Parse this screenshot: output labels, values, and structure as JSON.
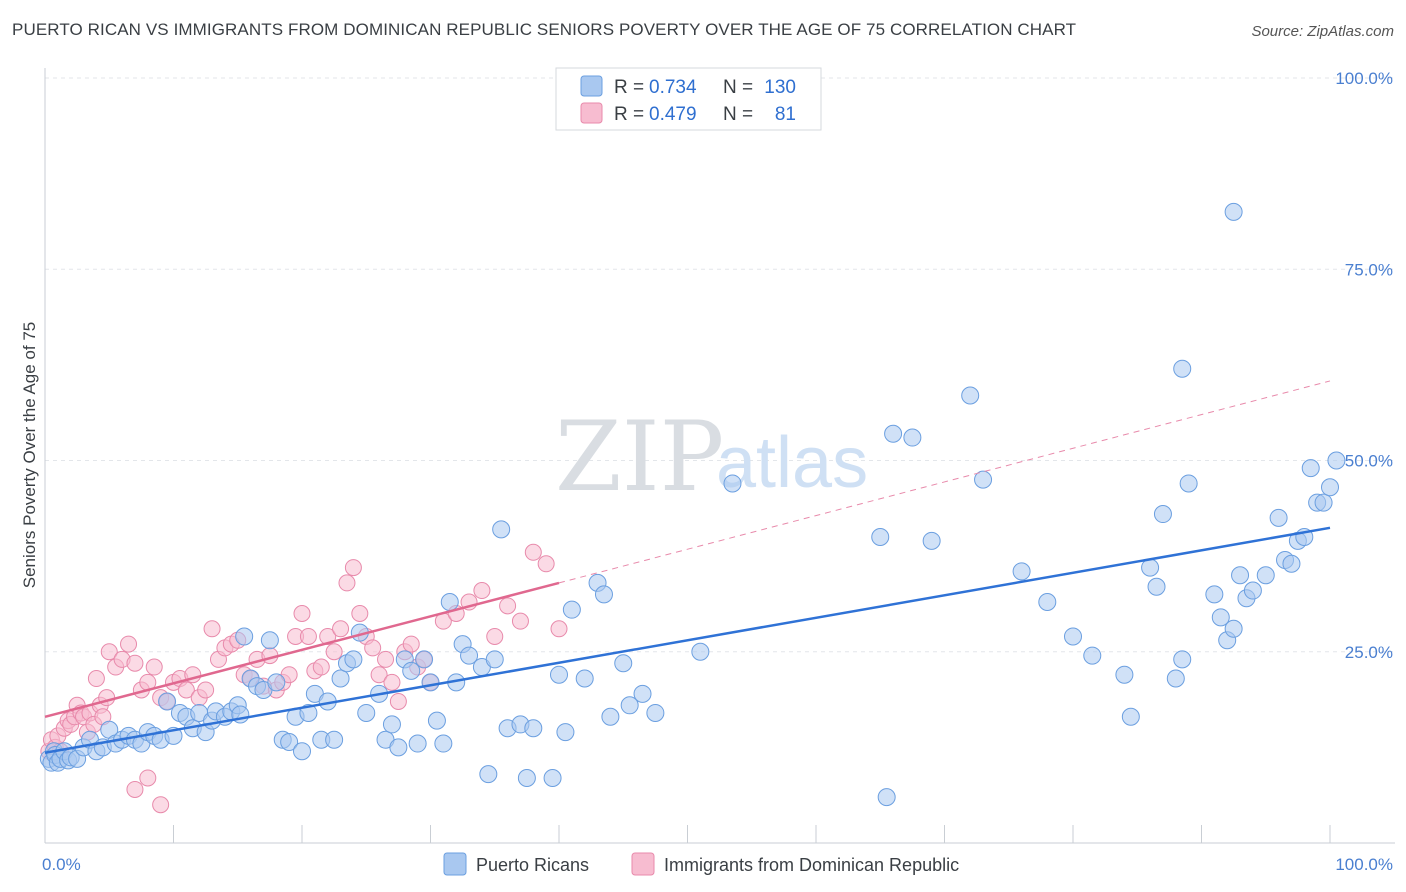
{
  "title": "PUERTO RICAN VS IMMIGRANTS FROM DOMINICAN REPUBLIC SENIORS POVERTY OVER THE AGE OF 75 CORRELATION CHART",
  "source": "Source: ZipAtlas.com",
  "watermark": {
    "zip": "ZIP",
    "atlas": "atlas"
  },
  "legend_top": [
    {
      "r_label": "R =",
      "r_value": "0.734",
      "n_label": "N =",
      "n_value": "130",
      "color": "#a9c8f0",
      "border": "#6b9fe0"
    },
    {
      "r_label": "R =",
      "r_value": "0.479",
      "n_label": "N =",
      "n_value": "81",
      "color": "#f7bcd0",
      "border": "#e88aab"
    }
  ],
  "legend_bottom": [
    {
      "label": "Puerto Ricans",
      "color": "#a9c8f0",
      "border": "#6b9fe0"
    },
    {
      "label": "Immigrants from Dominican Republic",
      "color": "#f7bcd0",
      "border": "#e88aab"
    }
  ],
  "chart_data": {
    "type": "scatter",
    "xlabel": "",
    "ylabel": "Seniors Poverty Over the Age of 75",
    "xlim": [
      0,
      100
    ],
    "ylim": [
      0,
      100
    ],
    "x_tick_labels": [
      "0.0%",
      "100.0%"
    ],
    "y_ticks": [
      {
        "value": 25,
        "label": "25.0%"
      },
      {
        "value": 50,
        "label": "50.0%"
      },
      {
        "value": 75,
        "label": "75.0%"
      },
      {
        "value": 100,
        "label": "100.0%"
      }
    ],
    "grid": true,
    "colors": {
      "blue_fill": "#a9c8f0",
      "blue_edge": "#6b9fe0",
      "blue_line": "#2f72d6",
      "pink_fill": "#f7bcd0",
      "pink_edge": "#e88aab",
      "pink_line": "#e0688f"
    },
    "series": [
      {
        "name": "Puerto Ricans",
        "trend": {
          "x0": 0,
          "y0": 11.8,
          "x1": 100,
          "y1": 41.2
        },
        "points": [
          [
            0.3,
            11
          ],
          [
            0.5,
            10.5
          ],
          [
            0.7,
            12
          ],
          [
            0.8,
            11.5
          ],
          [
            1,
            10.5
          ],
          [
            1.2,
            11
          ],
          [
            1.5,
            12
          ],
          [
            1.8,
            10.8
          ],
          [
            2,
            11.2
          ],
          [
            2.5,
            11
          ],
          [
            3,
            12.5
          ],
          [
            3.5,
            13.5
          ],
          [
            4,
            12
          ],
          [
            4.5,
            12.5
          ],
          [
            5,
            14.8
          ],
          [
            5.5,
            13
          ],
          [
            6,
            13.5
          ],
          [
            6.5,
            14
          ],
          [
            7,
            13.5
          ],
          [
            7.5,
            13
          ],
          [
            8,
            14.5
          ],
          [
            8.5,
            14
          ],
          [
            9,
            13.5
          ],
          [
            9.5,
            18.5
          ],
          [
            10,
            14
          ],
          [
            10.5,
            17
          ],
          [
            11,
            16.5
          ],
          [
            11.5,
            15
          ],
          [
            12,
            17
          ],
          [
            12.5,
            14.5
          ],
          [
            13,
            16
          ],
          [
            13.3,
            17.2
          ],
          [
            14,
            16.5
          ],
          [
            14.5,
            17.2
          ],
          [
            15,
            18
          ],
          [
            15.2,
            16.8
          ],
          [
            15.5,
            27
          ],
          [
            16,
            21.5
          ],
          [
            16.5,
            20.5
          ],
          [
            17,
            20
          ],
          [
            17.5,
            26.5
          ],
          [
            18,
            21
          ],
          [
            18.5,
            13.5
          ],
          [
            19,
            13.2
          ],
          [
            19.5,
            16.5
          ],
          [
            20,
            12
          ],
          [
            20.5,
            17
          ],
          [
            21,
            19.5
          ],
          [
            21.5,
            13.5
          ],
          [
            22,
            18.5
          ],
          [
            22.5,
            13.5
          ],
          [
            23,
            21.5
          ],
          [
            23.5,
            23.5
          ],
          [
            24,
            24
          ],
          [
            24.5,
            27.5
          ],
          [
            25,
            17
          ],
          [
            26,
            19.5
          ],
          [
            26.5,
            13.5
          ],
          [
            27,
            15.5
          ],
          [
            27.5,
            12.5
          ],
          [
            28,
            24
          ],
          [
            28.5,
            22.5
          ],
          [
            29,
            13
          ],
          [
            29.5,
            24
          ],
          [
            30,
            21
          ],
          [
            30.5,
            16
          ],
          [
            31,
            13
          ],
          [
            31.5,
            31.5
          ],
          [
            32,
            21
          ],
          [
            32.5,
            26
          ],
          [
            33,
            24.5
          ],
          [
            34,
            23
          ],
          [
            34.5,
            9
          ],
          [
            35,
            24
          ],
          [
            35.5,
            41
          ],
          [
            36,
            15
          ],
          [
            37,
            15.5
          ],
          [
            37.5,
            8.5
          ],
          [
            38,
            15
          ],
          [
            39.5,
            8.5
          ],
          [
            40,
            22
          ],
          [
            40.5,
            14.5
          ],
          [
            41,
            30.5
          ],
          [
            42,
            21.5
          ],
          [
            43,
            34
          ],
          [
            43.5,
            32.5
          ],
          [
            44,
            16.5
          ],
          [
            45,
            23.5
          ],
          [
            45.5,
            18
          ],
          [
            46.5,
            19.5
          ],
          [
            47.5,
            17
          ],
          [
            51,
            25
          ],
          [
            53.5,
            47
          ],
          [
            65,
            40
          ],
          [
            65.5,
            6
          ],
          [
            66,
            53.5
          ],
          [
            67.5,
            53
          ],
          [
            69,
            39.5
          ],
          [
            72,
            58.5
          ],
          [
            73,
            47.5
          ],
          [
            76,
            35.5
          ],
          [
            78,
            31.5
          ],
          [
            80,
            27
          ],
          [
            81.5,
            24.5
          ],
          [
            84,
            22
          ],
          [
            84.5,
            16.5
          ],
          [
            86,
            36
          ],
          [
            86.5,
            33.5
          ],
          [
            87,
            43
          ],
          [
            88,
            21.5
          ],
          [
            88.5,
            24
          ],
          [
            89,
            47
          ],
          [
            91,
            32.5
          ],
          [
            91.5,
            29.5
          ],
          [
            92,
            26.5
          ],
          [
            92.5,
            28
          ],
          [
            93,
            35
          ],
          [
            93.5,
            32
          ],
          [
            94,
            33
          ],
          [
            95,
            35
          ],
          [
            96,
            42.5
          ],
          [
            96.5,
            37
          ],
          [
            97,
            36.5
          ],
          [
            97.5,
            39.5
          ],
          [
            98,
            40
          ],
          [
            98.5,
            49
          ],
          [
            99,
            44.5
          ],
          [
            99.5,
            44.5
          ],
          [
            100,
            46.5
          ],
          [
            100.5,
            50
          ],
          [
            92.5,
            82.5
          ],
          [
            88.5,
            62
          ]
        ]
      },
      {
        "name": "Immigrants from Dominican Republic",
        "trend": {
          "x0": 0,
          "y0": 16.5,
          "x1": 40,
          "y1": 34.0,
          "dash_x1": 100,
          "dash_y1": 60.4
        },
        "points": [
          [
            0.3,
            12
          ],
          [
            0.5,
            13.5
          ],
          [
            0.8,
            12.5
          ],
          [
            1,
            14
          ],
          [
            1.2,
            12
          ],
          [
            1.5,
            15
          ],
          [
            1.8,
            16
          ],
          [
            2,
            15.5
          ],
          [
            2.3,
            16.5
          ],
          [
            2.5,
            18
          ],
          [
            2.8,
            17
          ],
          [
            3,
            16.5
          ],
          [
            3.3,
            14.5
          ],
          [
            3.5,
            17
          ],
          [
            3.8,
            15.5
          ],
          [
            4,
            21.5
          ],
          [
            4.3,
            18
          ],
          [
            4.5,
            16.5
          ],
          [
            4.8,
            19
          ],
          [
            5,
            25
          ],
          [
            5.5,
            23
          ],
          [
            6,
            24
          ],
          [
            6.5,
            26
          ],
          [
            7,
            23.5
          ],
          [
            7.5,
            20
          ],
          [
            8,
            21
          ],
          [
            8.5,
            23
          ],
          [
            9,
            19
          ],
          [
            9.5,
            18.5
          ],
          [
            10,
            21
          ],
          [
            10.5,
            21.5
          ],
          [
            11,
            20
          ],
          [
            11.5,
            22
          ],
          [
            12,
            19
          ],
          [
            12.5,
            20
          ],
          [
            13,
            28
          ],
          [
            13.5,
            24
          ],
          [
            14,
            25.5
          ],
          [
            14.5,
            26
          ],
          [
            15,
            26.5
          ],
          [
            15.5,
            22
          ],
          [
            16,
            21.5
          ],
          [
            16.5,
            24
          ],
          [
            17,
            20.5
          ],
          [
            17.5,
            24.5
          ],
          [
            18,
            20
          ],
          [
            18.5,
            21
          ],
          [
            19,
            22
          ],
          [
            19.5,
            27
          ],
          [
            20,
            30
          ],
          [
            20.5,
            27
          ],
          [
            21,
            22.5
          ],
          [
            21.5,
            23
          ],
          [
            22,
            27
          ],
          [
            22.5,
            25
          ],
          [
            23,
            28
          ],
          [
            23.5,
            34
          ],
          [
            24,
            36
          ],
          [
            24.5,
            30
          ],
          [
            25,
            27
          ],
          [
            25.5,
            25.5
          ],
          [
            26,
            22
          ],
          [
            26.5,
            24
          ],
          [
            27,
            21
          ],
          [
            27.5,
            18.5
          ],
          [
            28,
            25
          ],
          [
            28.5,
            26
          ],
          [
            29,
            23
          ],
          [
            29.5,
            24
          ],
          [
            30,
            21
          ],
          [
            31,
            29
          ],
          [
            32,
            30
          ],
          [
            33,
            31.5
          ],
          [
            34,
            33
          ],
          [
            35,
            27
          ],
          [
            36,
            31
          ],
          [
            37,
            29
          ],
          [
            38,
            38
          ],
          [
            39,
            36.5
          ],
          [
            40,
            28
          ],
          [
            7,
            7
          ],
          [
            8,
            8.5
          ],
          [
            9,
            5
          ]
        ]
      }
    ]
  }
}
